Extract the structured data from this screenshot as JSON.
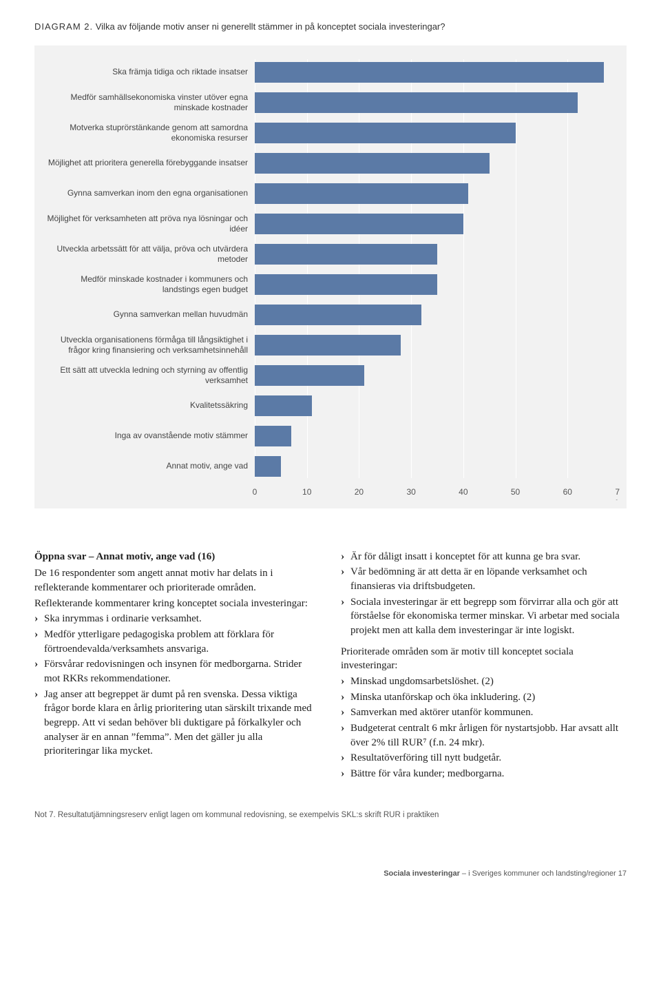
{
  "diagram": {
    "prefix": "diagram 2.",
    "title_rest": " Vilka av följande motiv anser ni generellt stämmer in på konceptet sociala investeringar?"
  },
  "chart": {
    "type": "bar",
    "bar_color": "#5b7aa6",
    "background_color": "#f2f2f2",
    "grid_color": "#ffffff",
    "label_fontsize": 12,
    "axis_fontsize": 12,
    "xmax": 70,
    "xtick_step": 10,
    "xsuffix_last": " %",
    "categories": [
      "Ska främja tidiga och riktade insatser",
      "Medför samhällsekonomiska vinster utöver egna minskade kostnader",
      "Motverka stuprörstänkande genom att samordna ekonomiska resurser",
      "Möjlighet att prioritera generella förebyggande insatser",
      "Gynna samverkan inom den egna organisationen",
      "Möjlighet för verksamheten att pröva nya lösningar och idéer",
      "Utveckla arbetssätt för att välja, pröva och utvärdera metoder",
      "Medför minskade kostnader i kommuners och landstings egen budget",
      "Gynna samverkan mellan huvudmän",
      "Utveckla organisationens förmåga till långsiktighet i frågor kring finansiering och verksamhetsinnehåll",
      "Ett sätt att utveckla ledning och styrning av offentlig verksamhet",
      "Kvalitetssäkring",
      "Inga av ovanstående motiv stämmer",
      "Annat motiv, ange vad"
    ],
    "values": [
      67,
      62,
      50,
      45,
      41,
      40,
      35,
      35,
      32,
      28,
      21,
      11,
      7,
      5
    ]
  },
  "body": {
    "left": {
      "heading": "Öppna svar – Annat motiv, ange vad (16)",
      "p1": "De 16 respondenter som angett annat motiv har delats in i reflekterande kommentarer och prioriterade områden.",
      "p2": "Reflekterande kommentarer kring konceptet sociala investeringar:",
      "bullets": [
        "Ska inrymmas i ordinarie verksamhet.",
        "Medför ytterligare pedagogiska problem att förklara för förtroendevalda/verksamhets ansvariga.",
        "Försvårar redovisningen och insynen för medborgarna. Strider mot RKRs rekommendationer.",
        "Jag anser att begreppet är dumt på ren svenska. Dessa viktiga frågor borde klara en årlig prioritering utan särskilt trixande med begrepp. Att vi sedan behöver bli duktigare på förkalkyler och analyser är en annan ”femma”. Men det gäller ju alla prioriteringar lika mycket."
      ]
    },
    "right": {
      "bullets1": [
        "Är för dåligt insatt i konceptet för att kunna ge bra svar.",
        "Vår bedömning är att detta är en löpande verksamhet och finansieras via driftsbudgeten.",
        "Sociala investeringar är ett begrepp som förvirrar alla och gör att förståelse för ekonomiska termer minskar. Vi arbetar med sociala projekt men att kalla dem investeringar är inte logiskt."
      ],
      "p1": "Prioriterade områden som är motiv till konceptet sociala investeringar:",
      "bullets2": [
        "Minskad ungdomsarbetslöshet. (2)",
        "Minska utanförskap och öka inkludering. (2)",
        "Samverkan med aktörer utanför kommunen.",
        "Budgeterat centralt 6 mkr årligen för nystartsjobb. Har avsatt allt över 2% till RUR⁷ (f.n. 24 mkr).",
        "Resultatöverföring till nytt budgetår.",
        "Bättre för våra kunder; medborgarna."
      ]
    }
  },
  "note": "Not 7. Resultatutjämningsreserv enligt lagen om kommunal redovisning, se exempelvis SKL:s skrift RUR i praktiken",
  "footer": {
    "bold": "Sociala investeringar",
    "rest": " – i Sveriges kommuner och landsting/regioner  17"
  }
}
